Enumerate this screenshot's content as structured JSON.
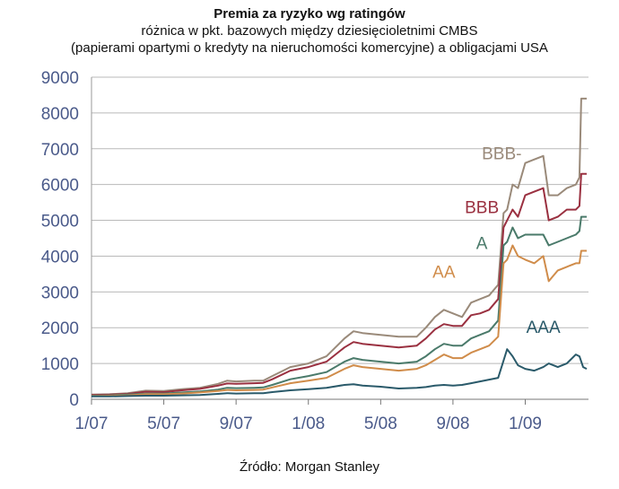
{
  "title": "Premia za ryzyko wg ratingów",
  "subtitle_line1": "różnica w pkt. bazowych między dziesięcioletnimi CMBS",
  "subtitle_line2": "(papierami opartymi o kredyty na nieruchomości komercyjne) a obligacjami USA",
  "source": "Źródło: Morgan Stanley",
  "chart_data": {
    "type": "line",
    "title": "Premia za ryzyko wg ratingów",
    "xlabel": "",
    "ylabel": "",
    "ylim": [
      0,
      9000
    ],
    "yticks": [
      0,
      1000,
      2000,
      3000,
      4000,
      5000,
      6000,
      7000,
      8000,
      9000
    ],
    "xlim": [
      0,
      27.5
    ],
    "xticks": [
      {
        "x": 0,
        "label": "1/07"
      },
      {
        "x": 4,
        "label": "5/07"
      },
      {
        "x": 8,
        "label": "9/07"
      },
      {
        "x": 12,
        "label": "1/08"
      },
      {
        "x": 16,
        "label": "5/08"
      },
      {
        "x": 20,
        "label": "9/08"
      },
      {
        "x": 24,
        "label": "1/09"
      }
    ],
    "grid": "horizontal",
    "legend": "inline labels",
    "series": [
      {
        "name": "BBB-",
        "color": "#9a8a7a",
        "label_at": [
          22.7,
          6700
        ],
        "points": [
          [
            0,
            130
          ],
          [
            1,
            140
          ],
          [
            2,
            170
          ],
          [
            3,
            240
          ],
          [
            4,
            230
          ],
          [
            5,
            280
          ],
          [
            6,
            320
          ],
          [
            7,
            430
          ],
          [
            7.5,
            520
          ],
          [
            8,
            500
          ],
          [
            9,
            520
          ],
          [
            9.5,
            520
          ],
          [
            10,
            650
          ],
          [
            11,
            900
          ],
          [
            12,
            1000
          ],
          [
            13,
            1200
          ],
          [
            14,
            1700
          ],
          [
            14.5,
            1900
          ],
          [
            15,
            1850
          ],
          [
            16,
            1800
          ],
          [
            17,
            1750
          ],
          [
            18,
            1750
          ],
          [
            18.5,
            2000
          ],
          [
            19,
            2300
          ],
          [
            19.5,
            2500
          ],
          [
            20,
            2400
          ],
          [
            20.5,
            2300
          ],
          [
            21,
            2700
          ],
          [
            21.5,
            2800
          ],
          [
            22,
            2900
          ],
          [
            22.5,
            3200
          ],
          [
            22.8,
            5200
          ],
          [
            23,
            5300
          ],
          [
            23.3,
            6000
          ],
          [
            23.6,
            5900
          ],
          [
            24,
            6600
          ],
          [
            24.5,
            6700
          ],
          [
            25,
            6800
          ],
          [
            25.3,
            5700
          ],
          [
            25.8,
            5700
          ],
          [
            26.3,
            5900
          ],
          [
            26.8,
            6000
          ],
          [
            27,
            6200
          ],
          [
            27.1,
            8400
          ],
          [
            27.4,
            8400
          ]
        ]
      },
      {
        "name": "BBB",
        "color": "#9a3040",
        "label_at": [
          21.6,
          5200
        ],
        "points": [
          [
            0,
            120
          ],
          [
            1,
            130
          ],
          [
            2,
            150
          ],
          [
            3,
            210
          ],
          [
            4,
            200
          ],
          [
            5,
            250
          ],
          [
            6,
            290
          ],
          [
            7,
            380
          ],
          [
            7.5,
            440
          ],
          [
            8,
            430
          ],
          [
            9,
            450
          ],
          [
            9.5,
            460
          ],
          [
            10,
            560
          ],
          [
            11,
            800
          ],
          [
            12,
            900
          ],
          [
            13,
            1050
          ],
          [
            14,
            1450
          ],
          [
            14.5,
            1600
          ],
          [
            15,
            1550
          ],
          [
            16,
            1500
          ],
          [
            17,
            1450
          ],
          [
            18,
            1500
          ],
          [
            18.5,
            1700
          ],
          [
            19,
            1950
          ],
          [
            19.5,
            2100
          ],
          [
            20,
            2050
          ],
          [
            20.5,
            2050
          ],
          [
            21,
            2350
          ],
          [
            21.5,
            2400
          ],
          [
            22,
            2500
          ],
          [
            22.5,
            2800
          ],
          [
            22.8,
            4800
          ],
          [
            23,
            5000
          ],
          [
            23.3,
            5300
          ],
          [
            23.6,
            5100
          ],
          [
            24,
            5700
          ],
          [
            24.5,
            5800
          ],
          [
            25,
            5900
          ],
          [
            25.3,
            5000
          ],
          [
            25.8,
            5100
          ],
          [
            26.3,
            5300
          ],
          [
            26.8,
            5300
          ],
          [
            27,
            5400
          ],
          [
            27.1,
            6300
          ],
          [
            27.4,
            6300
          ]
        ]
      },
      {
        "name": "A",
        "color": "#4a7a6a",
        "label_at": [
          21.6,
          4200
        ],
        "points": [
          [
            0,
            100
          ],
          [
            1,
            110
          ],
          [
            2,
            130
          ],
          [
            3,
            160
          ],
          [
            4,
            160
          ],
          [
            5,
            190
          ],
          [
            6,
            220
          ],
          [
            7,
            270
          ],
          [
            7.5,
            320
          ],
          [
            8,
            310
          ],
          [
            9,
            320
          ],
          [
            9.5,
            330
          ],
          [
            10,
            400
          ],
          [
            11,
            560
          ],
          [
            12,
            650
          ],
          [
            13,
            760
          ],
          [
            14,
            1050
          ],
          [
            14.5,
            1150
          ],
          [
            15,
            1100
          ],
          [
            16,
            1050
          ],
          [
            17,
            1000
          ],
          [
            18,
            1050
          ],
          [
            18.5,
            1200
          ],
          [
            19,
            1400
          ],
          [
            19.5,
            1550
          ],
          [
            20,
            1500
          ],
          [
            20.5,
            1500
          ],
          [
            21,
            1700
          ],
          [
            21.5,
            1800
          ],
          [
            22,
            1900
          ],
          [
            22.5,
            2200
          ],
          [
            22.8,
            4300
          ],
          [
            23,
            4400
          ],
          [
            23.3,
            4800
          ],
          [
            23.6,
            4500
          ],
          [
            24,
            4600
          ],
          [
            24.5,
            4600
          ],
          [
            25,
            4600
          ],
          [
            25.3,
            4300
          ],
          [
            25.8,
            4400
          ],
          [
            26.3,
            4500
          ],
          [
            26.8,
            4600
          ],
          [
            27,
            4700
          ],
          [
            27.1,
            5100
          ],
          [
            27.4,
            5100
          ]
        ]
      },
      {
        "name": "AA",
        "color": "#d08c4a",
        "label_at": [
          19.5,
          3400
        ],
        "points": [
          [
            0,
            90
          ],
          [
            1,
            100
          ],
          [
            2,
            110
          ],
          [
            3,
            140
          ],
          [
            4,
            140
          ],
          [
            5,
            160
          ],
          [
            6,
            190
          ],
          [
            7,
            230
          ],
          [
            7.5,
            260
          ],
          [
            8,
            250
          ],
          [
            9,
            260
          ],
          [
            9.5,
            270
          ],
          [
            10,
            330
          ],
          [
            11,
            450
          ],
          [
            12,
            520
          ],
          [
            13,
            600
          ],
          [
            14,
            850
          ],
          [
            14.5,
            950
          ],
          [
            15,
            900
          ],
          [
            16,
            850
          ],
          [
            17,
            800
          ],
          [
            18,
            850
          ],
          [
            18.5,
            950
          ],
          [
            19,
            1100
          ],
          [
            19.5,
            1250
          ],
          [
            20,
            1150
          ],
          [
            20.5,
            1150
          ],
          [
            21,
            1300
          ],
          [
            21.5,
            1400
          ],
          [
            22,
            1500
          ],
          [
            22.5,
            1750
          ],
          [
            22.8,
            3800
          ],
          [
            23,
            3900
          ],
          [
            23.3,
            4300
          ],
          [
            23.6,
            4000
          ],
          [
            24,
            3900
          ],
          [
            24.5,
            3800
          ],
          [
            25,
            4000
          ],
          [
            25.3,
            3300
          ],
          [
            25.8,
            3600
          ],
          [
            26.3,
            3700
          ],
          [
            26.8,
            3800
          ],
          [
            27,
            3800
          ],
          [
            27.1,
            4150
          ],
          [
            27.4,
            4150
          ]
        ]
      },
      {
        "name": "AAA",
        "color": "#2a5a6a",
        "label_at": [
          25.0,
          1850
        ],
        "points": [
          [
            0,
            80
          ],
          [
            1,
            80
          ],
          [
            2,
            90
          ],
          [
            3,
            100
          ],
          [
            4,
            100
          ],
          [
            5,
            110
          ],
          [
            6,
            120
          ],
          [
            7,
            150
          ],
          [
            7.5,
            170
          ],
          [
            8,
            160
          ],
          [
            9,
            170
          ],
          [
            9.5,
            170
          ],
          [
            10,
            200
          ],
          [
            11,
            250
          ],
          [
            12,
            280
          ],
          [
            13,
            320
          ],
          [
            14,
            400
          ],
          [
            14.5,
            420
          ],
          [
            15,
            380
          ],
          [
            16,
            350
          ],
          [
            17,
            300
          ],
          [
            18,
            320
          ],
          [
            18.5,
            340
          ],
          [
            19,
            380
          ],
          [
            19.5,
            400
          ],
          [
            20,
            380
          ],
          [
            20.5,
            400
          ],
          [
            21,
            450
          ],
          [
            21.5,
            500
          ],
          [
            22,
            550
          ],
          [
            22.5,
            600
          ],
          [
            23,
            1400
          ],
          [
            23.3,
            1200
          ],
          [
            23.6,
            950
          ],
          [
            24,
            850
          ],
          [
            24.5,
            800
          ],
          [
            25,
            900
          ],
          [
            25.3,
            1000
          ],
          [
            25.8,
            900
          ],
          [
            26.3,
            1000
          ],
          [
            26.8,
            1250
          ],
          [
            27,
            1200
          ],
          [
            27.2,
            900
          ],
          [
            27.4,
            850
          ]
        ]
      }
    ]
  }
}
